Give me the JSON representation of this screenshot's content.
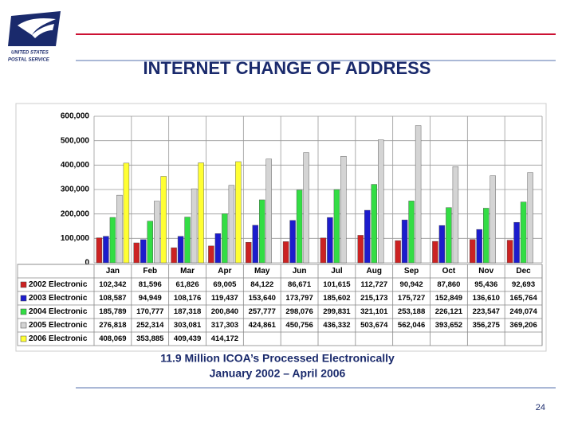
{
  "logo": {
    "line1": "UNITED STATES",
    "line2": "POSTAL SERVICE"
  },
  "slide_title": "INTERNET CHANGE OF ADDRESS",
  "caption": {
    "line1": "11.9 Million ICOA’s Processed Electronically",
    "line2": "January 2002 – April 2006"
  },
  "page_number": "24",
  "chart_data": {
    "type": "bar",
    "categories": [
      "Jan",
      "Feb",
      "Mar",
      "Apr",
      "May",
      "Jun",
      "Jul",
      "Aug",
      "Sep",
      "Oct",
      "Nov",
      "Dec"
    ],
    "ylim": [
      0,
      600000
    ],
    "yticks": [
      0,
      {
        "value": 100000,
        "label": "100,000"
      },
      {
        "value": 200000,
        "label": "200,000"
      },
      {
        "value": 300000,
        "label": "300,000"
      },
      {
        "value": 400000,
        "label": "400,000"
      },
      {
        "value": 500000,
        "label": "500,000"
      },
      {
        "value": 600000,
        "label": "600,000"
      }
    ],
    "grid": true,
    "series": [
      {
        "name": "2002 Electronic",
        "color": "#cc2222",
        "values": [
          102342,
          81596,
          61826,
          69005,
          84122,
          86671,
          101615,
          112727,
          90942,
          87860,
          95436,
          92693
        ],
        "value_labels": [
          "102,342",
          "81,596",
          "61,826",
          "69,005",
          "84,122",
          "86,671",
          "101,615",
          "112,727",
          "90,942",
          "87,860",
          "95,436",
          "92,693"
        ]
      },
      {
        "name": "2003 Electronic",
        "color": "#1c1ccc",
        "values": [
          108587,
          94949,
          108176,
          119437,
          153640,
          173797,
          185602,
          215173,
          175727,
          152849,
          136610,
          165764
        ],
        "value_labels": [
          "108,587",
          "94,949",
          "108,176",
          "119,437",
          "153,640",
          "173,797",
          "185,602",
          "215,173",
          "175,727",
          "152,849",
          "136,610",
          "165,764"
        ]
      },
      {
        "name": "2004 Electronic",
        "color": "#33dd44",
        "values": [
          185789,
          170777,
          187318,
          200840,
          257777,
          298076,
          299831,
          321101,
          253188,
          226121,
          223547,
          249074
        ],
        "value_labels": [
          "185,789",
          "170,777",
          "187,318",
          "200,840",
          "257,777",
          "298,076",
          "299,831",
          "321,101",
          "253,188",
          "226,121",
          "223,547",
          "249,074"
        ]
      },
      {
        "name": "2005 Electronic",
        "color": "#d4d4d4",
        "values": [
          276818,
          252314,
          303081,
          317303,
          424861,
          450756,
          436332,
          503674,
          562046,
          393652,
          356275,
          369206
        ],
        "value_labels": [
          "276,818",
          "252,314",
          "303,081",
          "317,303",
          "424,861",
          "450,756",
          "436,332",
          "503,674",
          "562,046",
          "393,652",
          "356,275",
          "369,206"
        ]
      },
      {
        "name": "2006 Electronic",
        "color": "#ffff33",
        "values": [
          408069,
          353885,
          409439,
          414172,
          null,
          null,
          null,
          null,
          null,
          null,
          null,
          null
        ],
        "value_labels": [
          "408,069",
          "353,885",
          "409,439",
          "414,172",
          null,
          null,
          null,
          null,
          null,
          null,
          null,
          null
        ]
      }
    ]
  }
}
